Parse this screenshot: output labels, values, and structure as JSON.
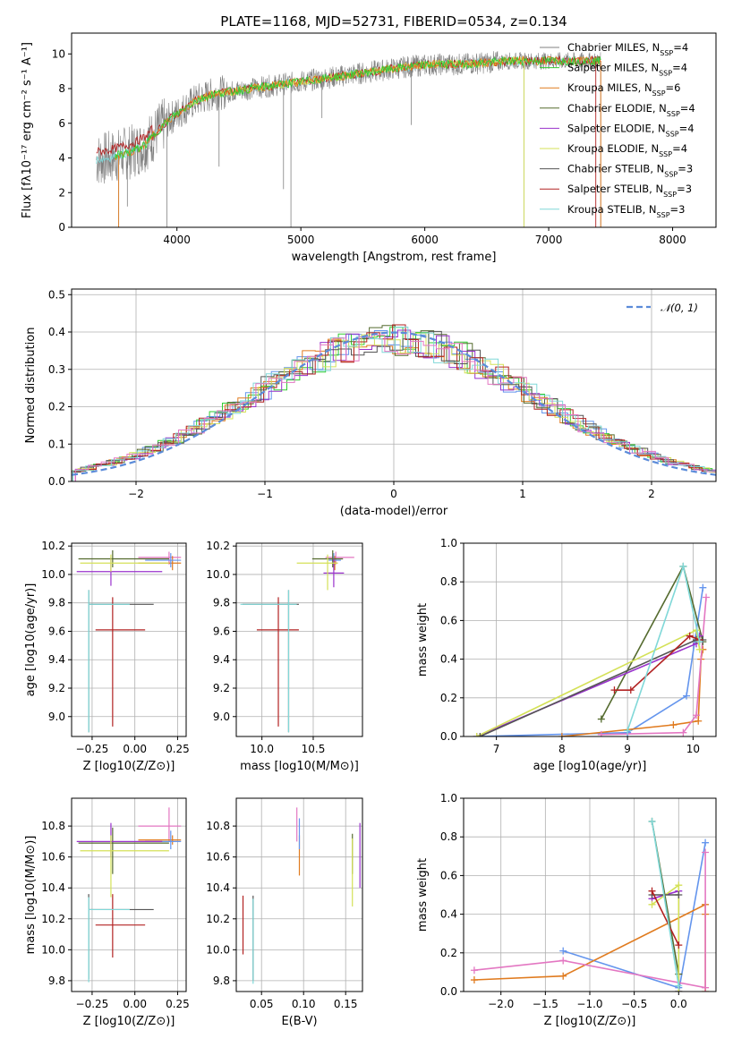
{
  "title": "PLATE=1168, MJD=52731, FIBERID=0534, z=0.134",
  "colors": {
    "Chabrier MILES": "#6495ed",
    "Salpeter MILES": "#32cd32",
    "Kroupa MILES": "#e07b1f",
    "Chabrier ELODIE": "#556b2f",
    "Salpeter ELODIE": "#9932cc",
    "Kroupa ELODIE": "#d4e157",
    "Chabrier STELIB": "#555555",
    "Salpeter STELIB": "#b22222",
    "Kroupa STELIB": "#80d8d8",
    "pink": "#e377c2",
    "gray": "#808080"
  },
  "chart_data": [
    {
      "type": "line",
      "name": "spectrum",
      "title": "PLATE=1168, MJD=52731, FIBERID=0534, z=0.134",
      "xlabel": "wavelength [Angstrom, rest frame]",
      "ylabel": "Flux [fλ10⁻¹⁷ erg cm⁻² s⁻¹ A⁻¹]",
      "xlim": [
        3150,
        8350
      ],
      "ylim": [
        0,
        11.2
      ],
      "xticks": [
        4000,
        5000,
        6000,
        7000,
        8000
      ],
      "yticks": [
        0,
        2,
        4,
        6,
        8,
        10
      ],
      "legend_position": "top-right",
      "legend": [
        {
          "label": "Chabrier MILES, N",
          "sub": "SSP",
          "suffix": "=4",
          "color_key": "gray"
        },
        {
          "label": "Salpeter MILES, N",
          "sub": "SSP",
          "suffix": "=4",
          "color_key": "Salpeter MILES"
        },
        {
          "label": "Kroupa MILES, N",
          "sub": "SSP",
          "suffix": "=6",
          "color_key": "Kroupa MILES"
        },
        {
          "label": "Chabrier ELODIE, N",
          "sub": "SSP",
          "suffix": "=4",
          "color_key": "Chabrier ELODIE"
        },
        {
          "label": "Salpeter ELODIE, N",
          "sub": "SSP",
          "suffix": "=4",
          "color_key": "Salpeter ELODIE"
        },
        {
          "label": "Kroupa ELODIE, N",
          "sub": "SSP",
          "suffix": "=4",
          "color_key": "Kroupa ELODIE"
        },
        {
          "label": "Chabrier STELIB, N",
          "sub": "SSP",
          "suffix": "=3",
          "color_key": "Chabrier STELIB"
        },
        {
          "label": "Salpeter STELIB, N",
          "sub": "SSP",
          "suffix": "=3",
          "color_key": "Salpeter STELIB"
        },
        {
          "label": "Kroupa STELIB, N",
          "sub": "SSP",
          "suffix": "=3",
          "color_key": "Kroupa STELIB"
        }
      ],
      "continuum": {
        "x": [
          3350,
          3450,
          3550,
          3650,
          3750,
          3850,
          3950,
          4050,
          4150,
          4300,
          4500,
          4700,
          4900,
          5100,
          5300,
          5500,
          5700,
          5900,
          6100,
          6300,
          6500,
          6700,
          6900,
          7100,
          7300,
          7420
        ],
        "y": [
          3.9,
          4.0,
          4.2,
          4.4,
          4.8,
          5.6,
          6.3,
          6.8,
          7.3,
          7.7,
          7.9,
          8.1,
          8.3,
          8.5,
          8.7,
          8.9,
          9.1,
          9.3,
          9.4,
          9.4,
          9.5,
          9.6,
          9.6,
          9.6,
          9.6,
          9.6
        ]
      },
      "absorption_dips": [
        {
          "x": 3530,
          "y": 0.0
        },
        {
          "x": 3600,
          "y": 1.2
        },
        {
          "x": 3920,
          "y": 0.0
        },
        {
          "x": 4340,
          "y": 3.5
        },
        {
          "x": 4860,
          "y": 2.2
        },
        {
          "x": 4920,
          "y": 0.0
        },
        {
          "x": 5170,
          "y": 6.3
        },
        {
          "x": 5890,
          "y": 5.9
        },
        {
          "x": 6800,
          "y": 0.0
        },
        {
          "x": 7420,
          "y": 0.0
        }
      ]
    },
    {
      "type": "bar",
      "name": "residual-histogram",
      "xlabel": "(data-model)/error",
      "ylabel": "Normed distribution",
      "xlim": [
        -2.5,
        2.5
      ],
      "ylim": [
        0,
        0.515
      ],
      "xticks": [
        -2,
        -1,
        0,
        1,
        2
      ],
      "yticks": [
        0.0,
        0.1,
        0.2,
        0.3,
        0.4,
        0.5
      ],
      "legend_position": "top-right",
      "legend_label": "𝒩(0, 1)",
      "gaussian": {
        "mean": 0,
        "sigma": 1,
        "color": "#5b8bd9"
      },
      "bin_width": 0.1
    },
    {
      "type": "scatter",
      "name": "age-vs-metallicity",
      "xlabel": "Z [log10(Z/Z⊙)]",
      "ylabel": "age  [log10(age/yr)]",
      "xlim": [
        -0.37,
        0.3
      ],
      "ylim": [
        8.86,
        10.22
      ],
      "xticks": [
        -0.25,
        0.0,
        0.25
      ],
      "yticks": [
        9.0,
        9.2,
        9.4,
        9.6,
        9.8,
        10.0,
        10.2
      ],
      "points": [
        {
          "x": 0.2,
          "y": 10.12,
          "xerr": [
            0.18,
            0.07
          ],
          "yerr": [
            0.05,
            0.04
          ],
          "c": "pink"
        },
        {
          "x": 0.22,
          "y": 10.08,
          "xerr": [
            0.2,
            0.05
          ],
          "yerr": [
            0.05,
            0.05
          ],
          "c": "Kroupa MILES"
        },
        {
          "x": 0.21,
          "y": 10.1,
          "xerr": [
            0.15,
            0.06
          ],
          "yerr": [
            0.05,
            0.05
          ],
          "c": "Chabrier MILES"
        },
        {
          "x": -0.13,
          "y": 10.11,
          "xerr": [
            0.2,
            0.33
          ],
          "yerr": [
            0.06,
            0.06
          ],
          "c": "Chabrier ELODIE"
        },
        {
          "x": -0.14,
          "y": 10.02,
          "xerr": [
            0.2,
            0.3
          ],
          "yerr": [
            0.1,
            0.1
          ],
          "c": "Salpeter ELODIE"
        },
        {
          "x": -0.14,
          "y": 10.08,
          "xerr": [
            0.18,
            0.34
          ],
          "yerr": [
            0.06,
            0.06
          ],
          "c": "Kroupa ELODIE"
        },
        {
          "x": -0.27,
          "y": 9.79,
          "xerr": [
            0.0,
            0.38
          ],
          "yerr": [
            0.9,
            0.1
          ],
          "c": "Chabrier STELIB"
        },
        {
          "x": -0.13,
          "y": 9.61,
          "xerr": [
            0.1,
            0.19
          ],
          "yerr": [
            0.68,
            0.23
          ],
          "c": "Salpeter STELIB"
        },
        {
          "x": -0.27,
          "y": 9.79,
          "xerr": [
            0.0,
            0.24
          ],
          "yerr": [
            0.9,
            0.1
          ],
          "c": "Kroupa STELIB"
        }
      ]
    },
    {
      "type": "scatter",
      "name": "age-vs-mass",
      "xlabel": "mass [log10(M/M⊙)]",
      "ylabel": "",
      "xlim": [
        9.75,
        10.98
      ],
      "ylim": [
        8.86,
        10.22
      ],
      "xticks": [
        10.0,
        10.5
      ],
      "yticks": [
        9.0,
        9.2,
        9.4,
        9.6,
        9.8,
        10.0,
        10.2
      ],
      "points": [
        {
          "x": 10.72,
          "y": 10.12,
          "xerr": [
            0.1,
            0.18
          ],
          "yerr": [
            0.05,
            0.04
          ],
          "c": "pink"
        },
        {
          "x": 10.71,
          "y": 10.08,
          "xerr": [
            0.03,
            0.03
          ],
          "yerr": [
            0.05,
            0.05
          ],
          "c": "Kroupa MILES"
        },
        {
          "x": 10.7,
          "y": 10.1,
          "xerr": [
            0.05,
            0.07
          ],
          "yerr": [
            0.05,
            0.05
          ],
          "c": "Chabrier MILES"
        },
        {
          "x": 10.69,
          "y": 10.11,
          "xerr": [
            0.2,
            0.1
          ],
          "yerr": [
            0.06,
            0.06
          ],
          "c": "Chabrier ELODIE"
        },
        {
          "x": 10.7,
          "y": 10.01,
          "xerr": [
            0.1,
            0.1
          ],
          "yerr": [
            0.1,
            0.1
          ],
          "c": "Salpeter ELODIE"
        },
        {
          "x": 10.64,
          "y": 10.08,
          "xerr": [
            0.3,
            0.1
          ],
          "yerr": [
            0.19,
            0.06
          ],
          "c": "Kroupa ELODIE"
        },
        {
          "x": 10.26,
          "y": 9.79,
          "xerr": [
            0.45,
            0.1
          ],
          "yerr": [
            0.9,
            0.1
          ],
          "c": "Chabrier STELIB"
        },
        {
          "x": 10.16,
          "y": 9.61,
          "xerr": [
            0.21,
            0.2
          ],
          "yerr": [
            0.68,
            0.23
          ],
          "c": "Salpeter STELIB"
        },
        {
          "x": 10.26,
          "y": 9.79,
          "xerr": [
            0.47,
            0.08
          ],
          "yerr": [
            0.9,
            0.1
          ],
          "c": "Kroupa STELIB"
        }
      ]
    },
    {
      "type": "line",
      "name": "mass-weight-vs-age",
      "xlabel": "age  [log10(age/yr)]",
      "ylabel": "mass weight",
      "xlim": [
        6.5,
        10.35
      ],
      "ylim": [
        0,
        1
      ],
      "xticks": [
        7,
        8,
        9,
        10
      ],
      "yticks": [
        0.0,
        0.2,
        0.4,
        0.6,
        0.8,
        1.0
      ],
      "series": [
        {
          "c": "Chabrier MILES",
          "x": [
            6.7,
            9.0,
            9.9,
            10.15
          ],
          "y": [
            0.0,
            0.02,
            0.21,
            0.77
          ]
        },
        {
          "c": "Kroupa MILES",
          "x": [
            8.0,
            9.7,
            10.08,
            10.12,
            10.15
          ],
          "y": [
            0.0,
            0.06,
            0.08,
            0.4,
            0.45
          ]
        },
        {
          "c": "pink",
          "x": [
            8.6,
            9.85,
            10.05,
            10.2
          ],
          "y": [
            0.01,
            0.02,
            0.11,
            0.72
          ]
        },
        {
          "c": "Chabrier ELODIE",
          "x": [
            8.6,
            9.85,
            10.15
          ],
          "y": [
            0.09,
            0.88,
            0.49
          ]
        },
        {
          "c": "Salpeter ELODIE",
          "x": [
            6.7,
            10.05,
            10.1
          ],
          "y": [
            0.0,
            0.48,
            0.52
          ]
        },
        {
          "c": "Kroupa ELODIE",
          "x": [
            6.7,
            10.05,
            10.1
          ],
          "y": [
            0.0,
            0.55,
            0.45
          ]
        },
        {
          "c": "Chabrier STELIB",
          "x": [
            6.75,
            10.05,
            10.15
          ],
          "y": [
            0.0,
            0.5,
            0.5
          ]
        },
        {
          "c": "Salpeter STELIB",
          "x": [
            8.8,
            9.05,
            9.95,
            10.1
          ],
          "y": [
            0.24,
            0.24,
            0.52,
            0.5
          ]
        },
        {
          "c": "Kroupa STELIB",
          "x": [
            9.0,
            9.85,
            10.1
          ],
          "y": [
            0.03,
            0.88,
            0.49
          ]
        }
      ]
    },
    {
      "type": "scatter",
      "name": "mass-vs-metallicity",
      "xlabel": "Z [log10(Z/Z⊙)]",
      "ylabel": "mass [log10(M/M⊙)]",
      "xlim": [
        -0.37,
        0.3
      ],
      "ylim": [
        9.73,
        10.98
      ],
      "xticks": [
        -0.25,
        0.0,
        0.25
      ],
      "yticks": [
        9.8,
        10.0,
        10.2,
        10.4,
        10.6,
        10.8
      ],
      "points": [
        {
          "x": 0.2,
          "y": 10.8,
          "xerr": [
            0.18,
            0.07
          ],
          "yerr": [
            0.1,
            0.12
          ],
          "c": "pink"
        },
        {
          "x": 0.22,
          "y": 10.71,
          "xerr": [
            0.2,
            0.05
          ],
          "yerr": [
            0.03,
            0.03
          ],
          "c": "Kroupa MILES"
        },
        {
          "x": 0.21,
          "y": 10.7,
          "xerr": [
            0.15,
            0.06
          ],
          "yerr": [
            0.05,
            0.07
          ],
          "c": "Chabrier MILES"
        },
        {
          "x": -0.13,
          "y": 10.69,
          "xerr": [
            0.2,
            0.33
          ],
          "yerr": [
            0.2,
            0.1
          ],
          "c": "Chabrier ELODIE"
        },
        {
          "x": -0.14,
          "y": 10.7,
          "xerr": [
            0.2,
            0.3
          ],
          "yerr": [
            0.1,
            0.12
          ],
          "c": "Salpeter ELODIE"
        },
        {
          "x": -0.14,
          "y": 10.64,
          "xerr": [
            0.18,
            0.34
          ],
          "yerr": [
            0.3,
            0.1
          ],
          "c": "Kroupa ELODIE"
        },
        {
          "x": -0.27,
          "y": 10.26,
          "xerr": [
            0.0,
            0.38
          ],
          "yerr": [
            0.45,
            0.1
          ],
          "c": "Chabrier STELIB"
        },
        {
          "x": -0.13,
          "y": 10.16,
          "xerr": [
            0.1,
            0.19
          ],
          "yerr": [
            0.21,
            0.2
          ],
          "c": "Salpeter STELIB"
        },
        {
          "x": -0.27,
          "y": 10.26,
          "xerr": [
            0.0,
            0.24
          ],
          "yerr": [
            0.47,
            0.08
          ],
          "c": "Kroupa STELIB"
        }
      ]
    },
    {
      "type": "scatter",
      "name": "mass-vs-extinction",
      "xlabel": "E(B-V)",
      "ylabel": "",
      "xlim": [
        0.02,
        0.17
      ],
      "ylim": [
        9.73,
        10.98
      ],
      "xticks": [
        0.05,
        0.1,
        0.15
      ],
      "xtick_labels": [
        "0.05",
        "0.10",
        "0.15"
      ],
      "yticks": [
        9.8,
        10.0,
        10.2,
        10.4,
        10.6,
        10.8
      ],
      "points": [
        {
          "x": 0.092,
          "y": 10.8,
          "yerr": [
            0.1,
            0.12
          ],
          "c": "pink"
        },
        {
          "x": 0.095,
          "y": 10.71,
          "yerr": [
            0.23,
            0.03
          ],
          "c": "Kroupa MILES"
        },
        {
          "x": 0.095,
          "y": 10.7,
          "yerr": [
            0.05,
            0.15
          ],
          "c": "Chabrier MILES"
        },
        {
          "x": 0.158,
          "y": 10.69,
          "yerr": [
            0.2,
            0.06
          ],
          "c": "Chabrier ELODIE"
        },
        {
          "x": 0.167,
          "y": 10.6,
          "yerr": [
            0.2,
            0.22
          ],
          "c": "Salpeter ELODIE"
        },
        {
          "x": 0.158,
          "y": 10.5,
          "yerr": [
            0.22,
            0.22
          ],
          "c": "Kroupa ELODIE"
        },
        {
          "x": 0.04,
          "y": 10.05,
          "yerr": [
            0.25,
            0.3
          ],
          "c": "Chabrier STELIB"
        },
        {
          "x": 0.028,
          "y": 10.15,
          "yerr": [
            0.18,
            0.2
          ],
          "c": "Salpeter STELIB"
        },
        {
          "x": 0.04,
          "y": 10.05,
          "yerr": [
            0.27,
            0.28
          ],
          "c": "Kroupa STELIB"
        }
      ]
    },
    {
      "type": "line",
      "name": "mass-weight-vs-metallicity",
      "xlabel": "Z [log10(Z/Z⊙)]",
      "ylabel": "mass weight",
      "xlim": [
        -2.42,
        0.42
      ],
      "ylim": [
        0,
        1
      ],
      "xticks": [
        -2.0,
        -1.5,
        -1.0,
        -0.5,
        0.0
      ],
      "yticks": [
        0.0,
        0.2,
        0.4,
        0.6,
        0.8,
        1.0
      ],
      "series": [
        {
          "c": "Chabrier MILES",
          "x": [
            -1.3,
            0.0,
            0.0,
            0.3
          ],
          "y": [
            0.21,
            0.02,
            0.0,
            0.77
          ]
        },
        {
          "c": "Kroupa MILES",
          "x": [
            -2.3,
            -1.3,
            0.3,
            0.3,
            0.3
          ],
          "y": [
            0.06,
            0.08,
            0.45,
            0.4,
            0.0
          ]
        },
        {
          "c": "pink",
          "x": [
            -2.3,
            -1.3,
            0.3,
            0.3
          ],
          "y": [
            0.11,
            0.16,
            0.02,
            0.72
          ]
        },
        {
          "c": "Chabrier ELODIE",
          "x": [
            -0.3,
            0.0,
            0.0
          ],
          "y": [
            0.88,
            0.09,
            0.0
          ]
        },
        {
          "c": "Salpeter ELODIE",
          "x": [
            -0.3,
            0.0,
            0.0
          ],
          "y": [
            0.48,
            0.52,
            0.0
          ]
        },
        {
          "c": "Kroupa ELODIE",
          "x": [
            -0.3,
            0.0,
            0.0
          ],
          "y": [
            0.45,
            0.55,
            0.0
          ]
        },
        {
          "c": "Chabrier STELIB",
          "x": [
            -0.3,
            0.0
          ],
          "y": [
            0.5,
            0.5
          ]
        },
        {
          "c": "Salpeter STELIB",
          "x": [
            -0.3,
            0.0
          ],
          "y": [
            0.52,
            0.24
          ]
        },
        {
          "c": "Kroupa STELIB",
          "x": [
            -0.3,
            0.0
          ],
          "y": [
            0.88,
            0.03
          ]
        }
      ]
    }
  ]
}
